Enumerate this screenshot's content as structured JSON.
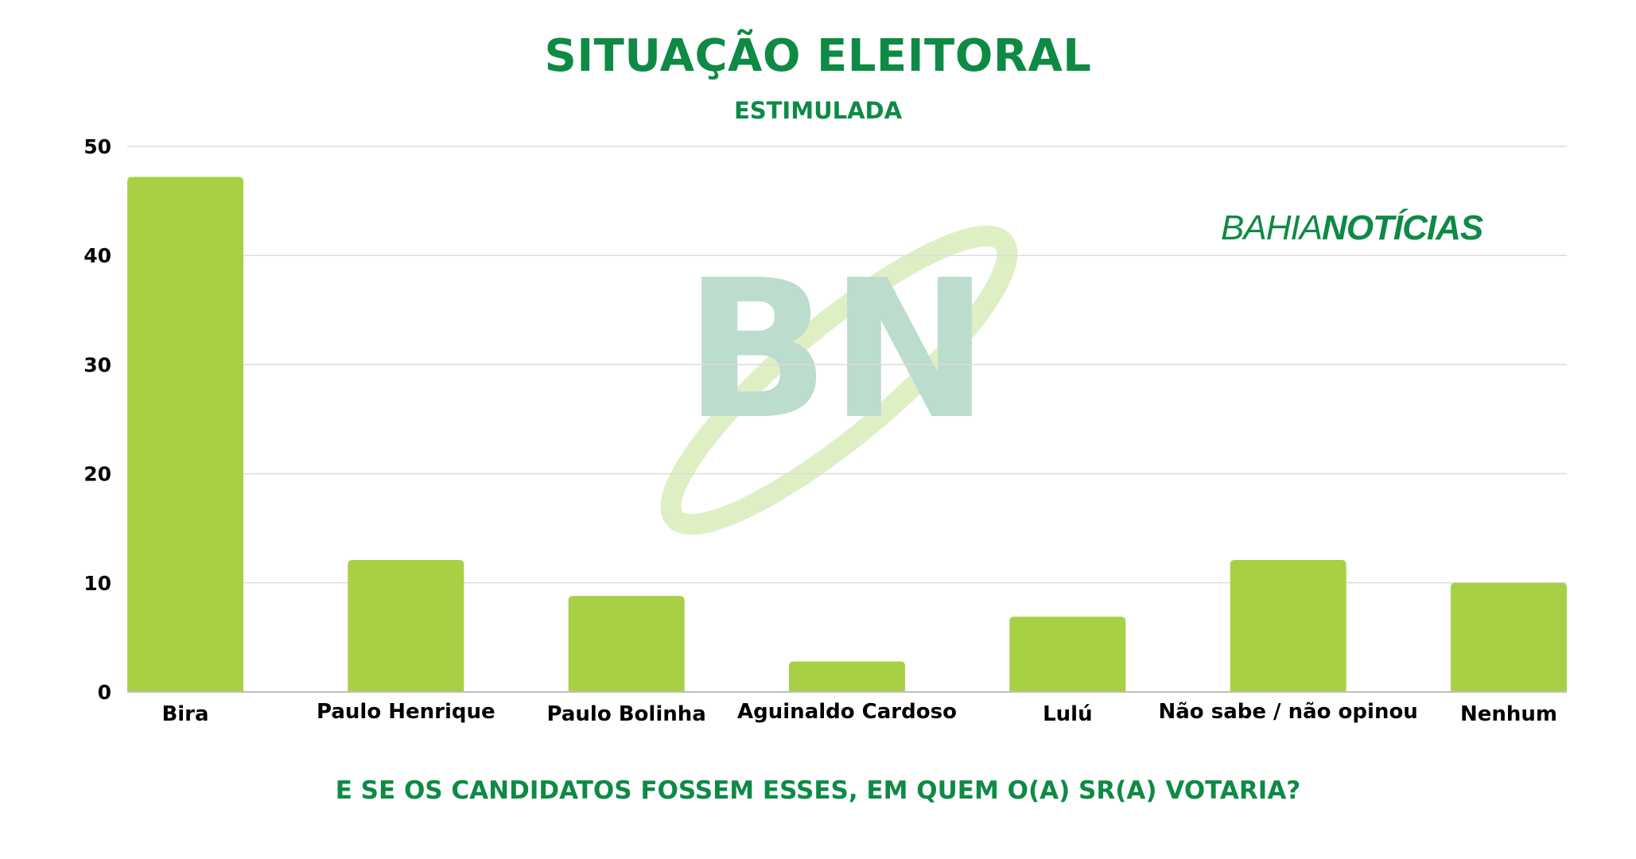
{
  "chart_data": {
    "type": "bar",
    "title": "SITUAÇÃO ELEITORAL",
    "subtitle": "ESTIMULADA",
    "question": "E SE OS CANDIDATOS FOSSEM ESSES, EM QUEM O(A) SR(A) VOTARIA?",
    "categories": [
      "Bira",
      "Paulo Henrique",
      "Paulo Bolinha",
      "Aguinaldo Cardoso",
      "Lulú",
      "Não sabe / não opinou",
      "Nenhum"
    ],
    "values": [
      47.2,
      12.1,
      8.8,
      2.8,
      6.9,
      12.1,
      10.0
    ],
    "ylim": [
      0,
      50
    ],
    "yticks": [
      0,
      10,
      20,
      30,
      40,
      50
    ],
    "grid": true,
    "bar_color": "#a8d045",
    "grid_color": "#dcdcdc",
    "axis_color": "#bfbfbf",
    "accent_color": "#0e8a45"
  },
  "brand": {
    "part1": "BAHIA",
    "part2": "NOTÍCIAS",
    "watermark_icon": "bn-logo-icon",
    "watermark_text": "BN"
  }
}
